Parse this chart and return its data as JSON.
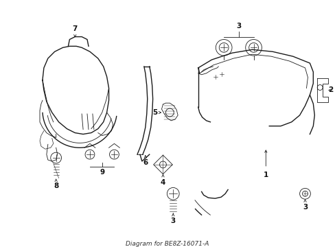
{
  "bg_color": "#ffffff",
  "line_color": "#1a1a1a",
  "label_color": "#111111",
  "figsize": [
    4.89,
    3.6
  ],
  "dpi": 100,
  "title_bottom": "Diagram for BE8Z-16071-A",
  "lw_main": 1.0,
  "lw_thin": 0.6,
  "lw_label": 0.6,
  "label_fontsize": 7.5
}
